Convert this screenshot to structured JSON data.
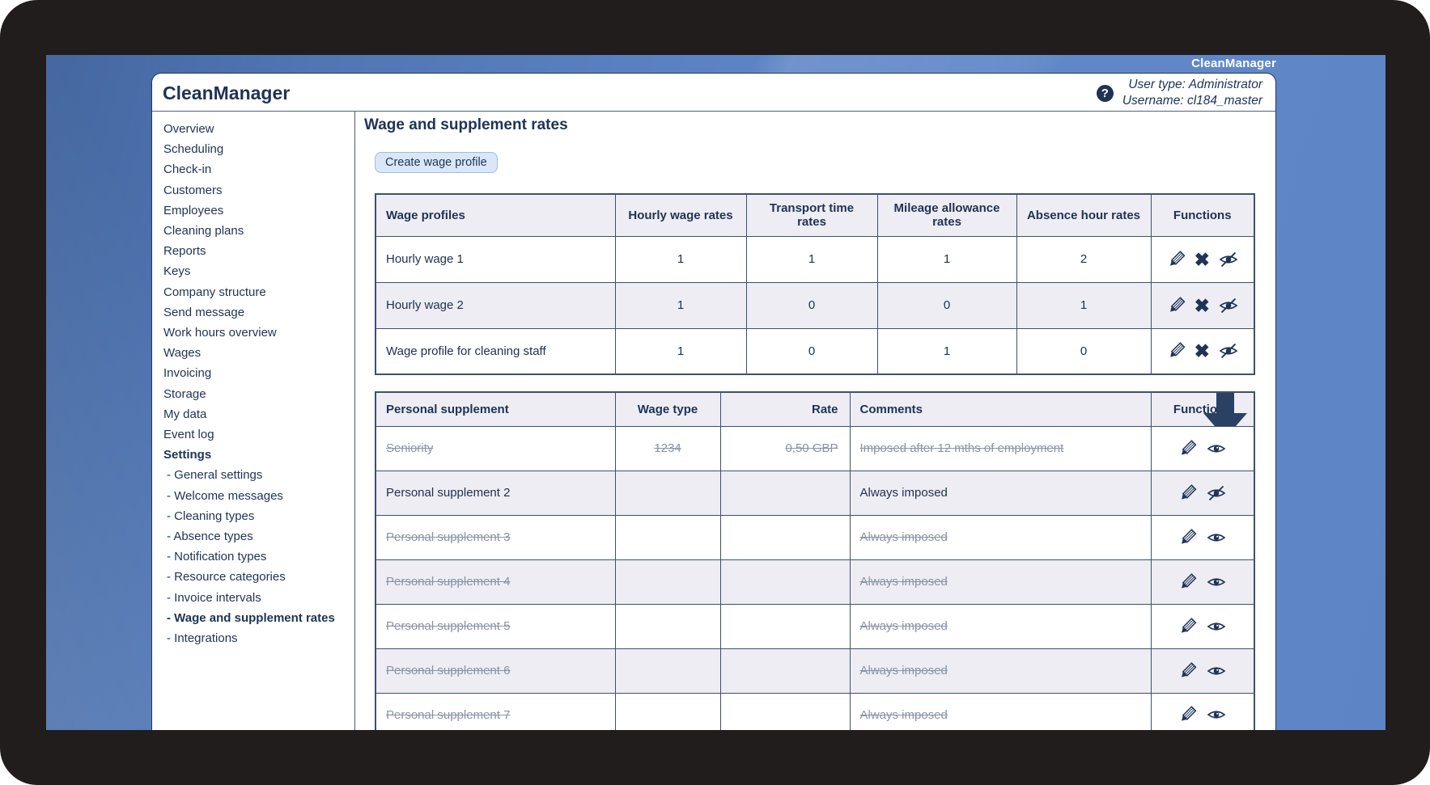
{
  "desktop": {
    "watermark": "CleanManager"
  },
  "header": {
    "logo": "CleanManager",
    "help_glyph": "?",
    "user_type": "User type: Administrator",
    "username": "Username: cl184_master"
  },
  "sidebar": {
    "items": [
      {
        "label": "Overview"
      },
      {
        "label": "Scheduling"
      },
      {
        "label": "Check-in"
      },
      {
        "label": "Customers"
      },
      {
        "label": "Employees"
      },
      {
        "label": "Cleaning plans"
      },
      {
        "label": "Reports"
      },
      {
        "label": "Keys"
      },
      {
        "label": "Company structure"
      },
      {
        "label": "Send message"
      },
      {
        "label": "Work hours overview"
      },
      {
        "label": "Wages"
      },
      {
        "label": "Invoicing"
      },
      {
        "label": "Storage"
      },
      {
        "label": "My data"
      },
      {
        "label": "Event log"
      },
      {
        "label": "Settings",
        "bold": true
      },
      {
        "label": "General settings",
        "sub": true
      },
      {
        "label": "Welcome messages",
        "sub": true
      },
      {
        "label": "Cleaning types",
        "sub": true
      },
      {
        "label": "Absence types",
        "sub": true
      },
      {
        "label": "Notification types",
        "sub": true
      },
      {
        "label": "Resource categories",
        "sub": true
      },
      {
        "label": "Invoice intervals",
        "sub": true
      },
      {
        "label": "Wage and supplement rates",
        "sub": true,
        "bold": true,
        "active": true
      },
      {
        "label": "Integrations",
        "sub": true
      }
    ],
    "sub_prefix": "- "
  },
  "main": {
    "title": "Wage and supplement rates",
    "create_button_label": "Create wage profile",
    "wage_table": {
      "columns": [
        "Wage profiles",
        "Hourly wage rates",
        "Transport time rates",
        "Mileage allowance rates",
        "Absence hour rates",
        "Functions"
      ],
      "rows": [
        {
          "name": "Hourly wage 1",
          "hourly_wage": "1",
          "transport_time": "1",
          "mileage_allowance": "1",
          "absence_hour": "2",
          "functions": [
            "edit",
            "delete",
            "hide"
          ]
        },
        {
          "name": "Hourly wage 2",
          "hourly_wage": "1",
          "transport_time": "0",
          "mileage_allowance": "0",
          "absence_hour": "1",
          "functions": [
            "edit",
            "delete",
            "hide"
          ]
        },
        {
          "name": "Wage profile for cleaning staff",
          "hourly_wage": "1",
          "transport_time": "0",
          "mileage_allowance": "1",
          "absence_hour": "0",
          "functions": [
            "edit",
            "delete",
            "hide"
          ]
        }
      ]
    },
    "supplement_table": {
      "columns": [
        "Personal supplement",
        "Wage type",
        "Rate",
        "Comments",
        "Functions"
      ],
      "rows": [
        {
          "name": "Seniority",
          "wage_type": "1234",
          "rate": "0,50 GBP",
          "comments": "Imposed after 12 mths of employment",
          "strikethrough": true,
          "functions": [
            "edit",
            "show"
          ]
        },
        {
          "name": "Personal supplement 2",
          "wage_type": "",
          "rate": "",
          "comments": "Always imposed",
          "strikethrough": false,
          "functions": [
            "edit",
            "hide"
          ]
        },
        {
          "name": "Personal supplement 3",
          "wage_type": "",
          "rate": "",
          "comments": "Always imposed",
          "strikethrough": true,
          "functions": [
            "edit",
            "show"
          ]
        },
        {
          "name": "Personal supplement 4",
          "wage_type": "",
          "rate": "",
          "comments": "Always imposed",
          "strikethrough": true,
          "functions": [
            "edit",
            "show"
          ]
        },
        {
          "name": "Personal supplement 5",
          "wage_type": "",
          "rate": "",
          "comments": "Always imposed",
          "strikethrough": true,
          "functions": [
            "edit",
            "show"
          ]
        },
        {
          "name": "Personal supplement 6",
          "wage_type": "",
          "rate": "",
          "comments": "Always imposed",
          "strikethrough": true,
          "functions": [
            "edit",
            "show"
          ]
        },
        {
          "name": "Personal supplement 7",
          "wage_type": "",
          "rate": "",
          "comments": "Always imposed",
          "strikethrough": true,
          "functions": [
            "edit",
            "show"
          ]
        }
      ]
    }
  },
  "colors": {
    "navy_text": "#1e3356",
    "table_border": "#3e506e",
    "row_alt_bg": "#ededf3",
    "struck_text": "#8893a6",
    "button_bg": "#d9e7f8",
    "arrow": "#2a4163",
    "frame_black": "#201d1c",
    "desktop_blue": "#5c83c4"
  }
}
